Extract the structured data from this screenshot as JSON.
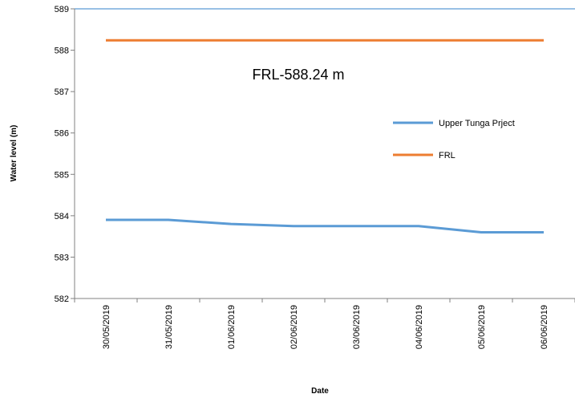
{
  "chart_data": {
    "type": "line",
    "categories": [
      "30/05/2019",
      "31/05/2019",
      "01/06/2019",
      "02/06/2019",
      "03/06/2019",
      "04/06/2019",
      "05/06/2019",
      "06/06/2019"
    ],
    "series": [
      {
        "name": "Upper Tunga Prject",
        "color": "#5B9BD5",
        "values": [
          583.9,
          583.9,
          583.8,
          583.75,
          583.75,
          583.75,
          583.6,
          583.6
        ]
      },
      {
        "name": "FRL",
        "color": "#ED7D31",
        "values": [
          588.24,
          588.24,
          588.24,
          588.24,
          588.24,
          588.24,
          588.24,
          588.24
        ]
      }
    ],
    "xlabel": "Date",
    "ylabel": "Water level (m)",
    "ylim": [
      582,
      589
    ],
    "yticks": [
      582,
      583,
      584,
      585,
      586,
      587,
      588,
      589
    ],
    "annotation": "FRL-588.24 m",
    "legend_position": "right",
    "grid": false,
    "top_border_color": "#5B9BD5"
  }
}
